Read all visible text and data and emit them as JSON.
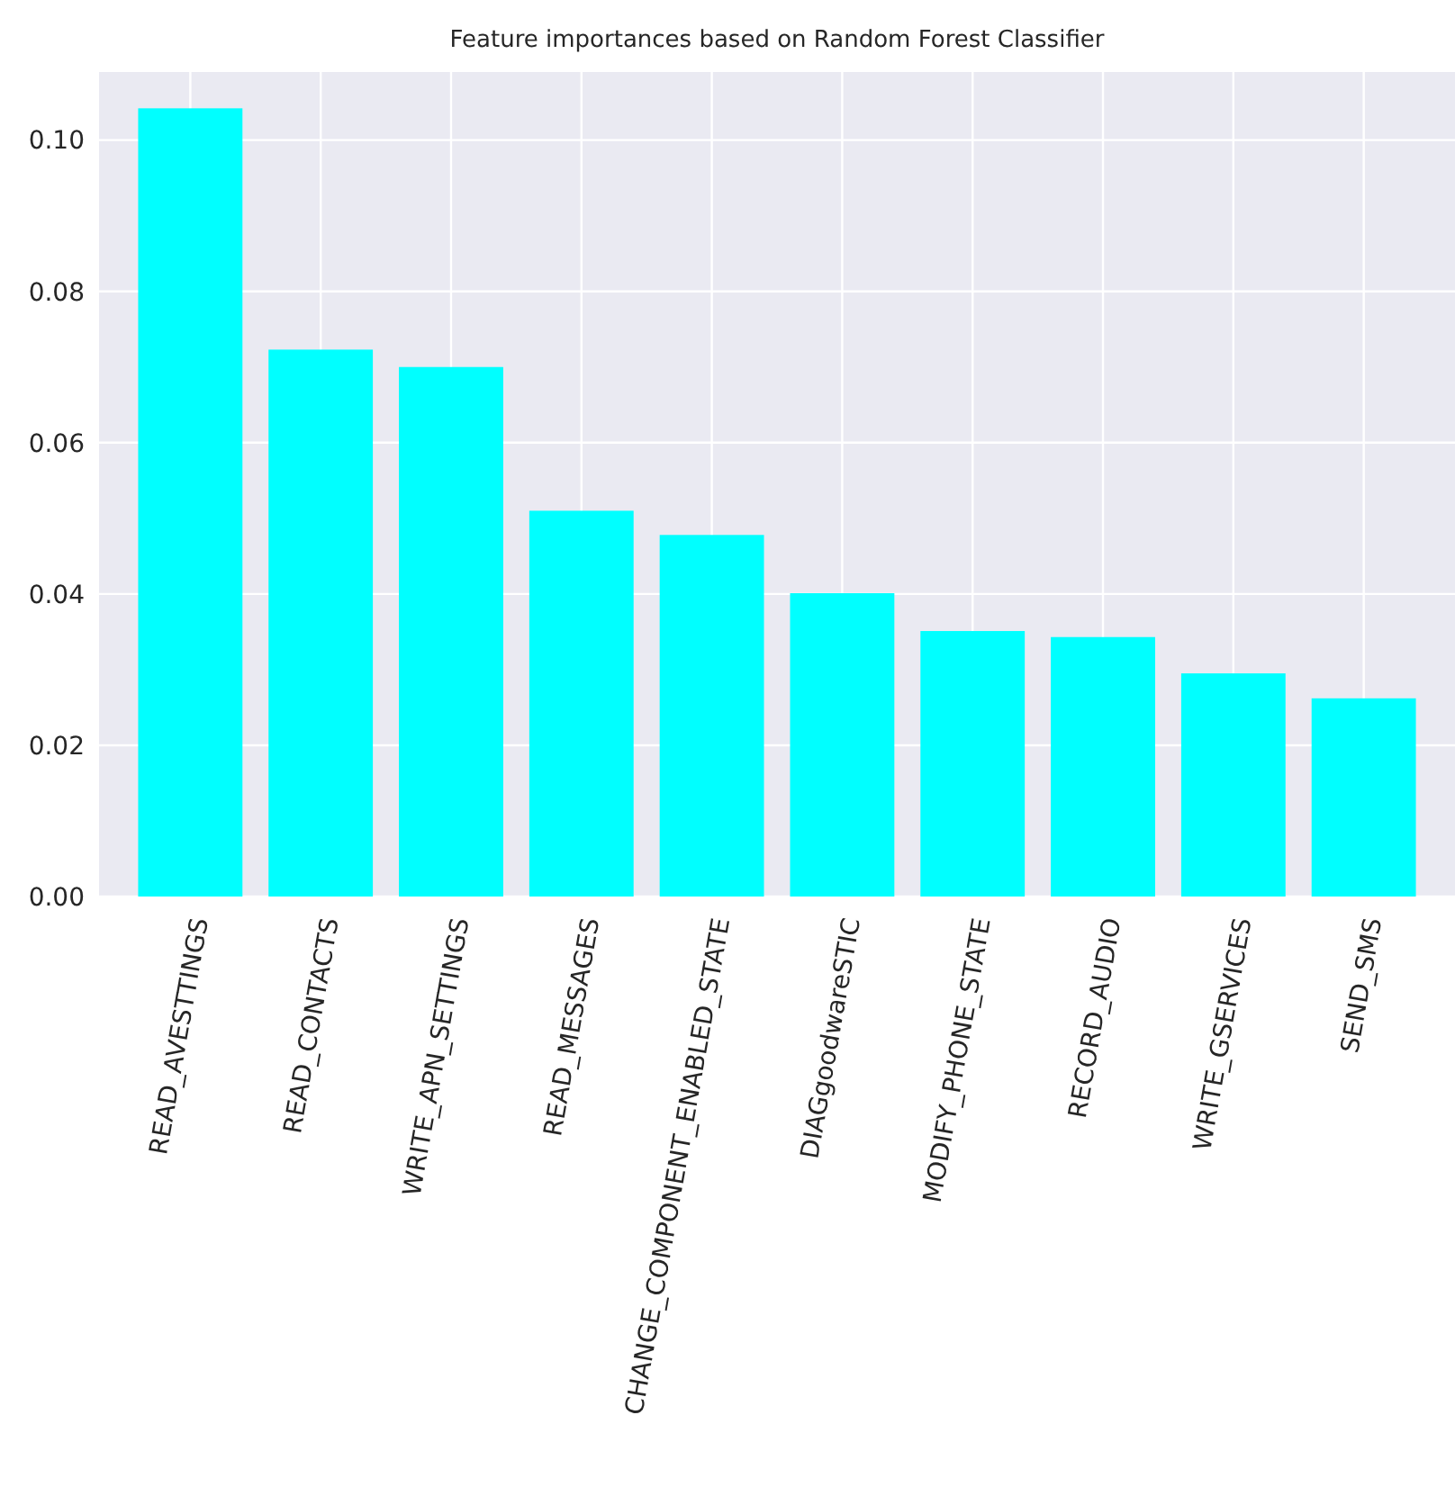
{
  "chart_data": {
    "type": "bar",
    "title": "Feature importances based on Random Forest Classifier",
    "categories": [
      "READ_AVESTTINGS",
      "READ_CONTACTS",
      "WRITE_APN_SETTINGS",
      "READ_MESSAGES",
      "CHANGE_COMPONENT_ENABLED_STATE",
      "DIAGgoodwareSTIC",
      "MODIFY_PHONE_STATE",
      "RECORD_AUDIO",
      "WRITE_GSERVICES",
      "SEND_SMS"
    ],
    "values": [
      0.1042,
      0.0723,
      0.07,
      0.051,
      0.0478,
      0.0401,
      0.0351,
      0.0343,
      0.0295,
      0.0262
    ],
    "color": "#00ffff",
    "ylim": [
      0,
      0.109
    ],
    "yticks": [
      {
        "value": 0,
        "label": "0.00"
      },
      {
        "value": 0.02,
        "label": "0.02"
      },
      {
        "value": 0.04,
        "label": "0.04"
      },
      {
        "value": 0.06,
        "label": "0.06"
      },
      {
        "value": 0.08,
        "label": "0.08"
      },
      {
        "value": 0.1,
        "label": "0.10"
      }
    ],
    "grid": true
  }
}
